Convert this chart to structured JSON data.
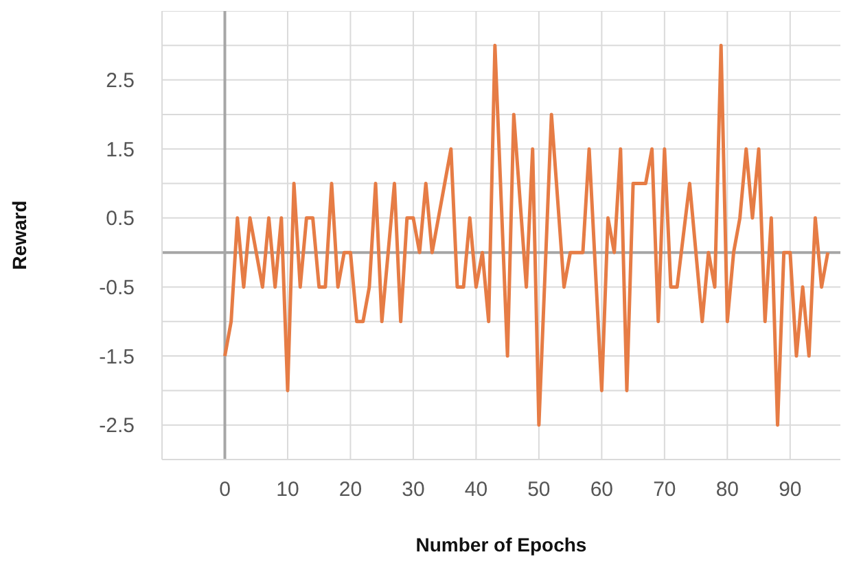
{
  "chart_data": {
    "type": "line",
    "xlabel": "Number of Epochs",
    "ylabel": "Reward",
    "x": [
      0,
      1,
      2,
      3,
      4,
      5,
      6,
      7,
      8,
      9,
      10,
      11,
      12,
      13,
      14,
      15,
      16,
      17,
      18,
      19,
      20,
      21,
      22,
      23,
      24,
      25,
      26,
      27,
      28,
      29,
      30,
      31,
      32,
      33,
      34,
      35,
      36,
      37,
      38,
      39,
      40,
      41,
      42,
      43,
      44,
      45,
      46,
      47,
      48,
      49,
      50,
      51,
      52,
      53,
      54,
      55,
      56,
      57,
      58,
      59,
      60,
      61,
      62,
      63,
      64,
      65,
      66,
      67,
      68,
      69,
      70,
      71,
      72,
      73,
      74,
      75,
      76,
      77,
      78,
      79,
      80,
      81,
      82,
      83,
      84,
      85,
      86,
      87,
      88,
      89,
      90,
      91,
      92,
      93,
      94,
      95,
      96
    ],
    "series": [
      {
        "color": "#e67c45",
        "values": [
          -1.5,
          -1,
          0.5,
          -0.5,
          0.5,
          0,
          -0.5,
          0.5,
          -0.5,
          0.5,
          -2,
          1,
          -0.5,
          0.5,
          0.5,
          -0.5,
          -0.5,
          1,
          -0.5,
          0,
          0,
          -1,
          -1,
          -0.5,
          1,
          -1,
          0,
          1,
          -1,
          0.5,
          0.5,
          0,
          1,
          0,
          0.5,
          1,
          1.5,
          -0.5,
          -0.5,
          0.5,
          -0.5,
          0,
          -1,
          3,
          0.75,
          -1.5,
          2,
          0.75,
          -0.5,
          1.5,
          -2.5,
          -0.25,
          2,
          0.75,
          -0.5,
          0,
          0,
          0,
          1.5,
          -0.25,
          -2,
          0.5,
          0,
          1.5,
          -2,
          1,
          1,
          1,
          1.5,
          -1,
          1.5,
          -0.5,
          -0.5,
          0.25,
          1,
          0,
          -1,
          0,
          -0.5,
          3,
          -1,
          0,
          0.5,
          1.5,
          0.5,
          1.5,
          -1,
          0.5,
          -2.5,
          0,
          0,
          -1.5,
          -0.5,
          -1.5,
          0.5,
          -0.5,
          0
        ]
      }
    ],
    "xlim": [
      -10,
      98
    ],
    "xticks": [
      {
        "value": -10,
        "label": null
      },
      0,
      10,
      20,
      30,
      40,
      50,
      60,
      70,
      80,
      90
    ],
    "ylim": [
      -3,
      3.5
    ],
    "yticks": [
      {
        "value": -3,
        "label": null
      },
      -2.5,
      {
        "value": -2,
        "label": null
      },
      -1.5,
      {
        "value": -1,
        "label": null
      },
      -0.5,
      {
        "value": 0,
        "label": null
      },
      0.5,
      {
        "value": 1,
        "label": null
      },
      1.5,
      {
        "value": 2,
        "label": null
      },
      2.5,
      {
        "value": 3,
        "label": null
      },
      {
        "value": 3.5,
        "label": null
      }
    ],
    "grid": true,
    "legend": false,
    "marker": "none",
    "line_style": "solid"
  }
}
